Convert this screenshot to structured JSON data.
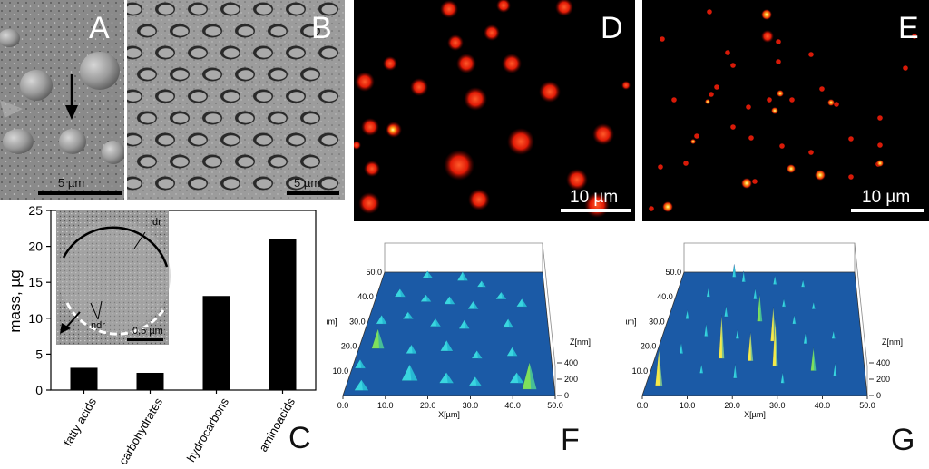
{
  "panels": {
    "A": {
      "letter": "A",
      "scale": "5 µm"
    },
    "B": {
      "letter": "B",
      "scale": "5 µm"
    },
    "C": {
      "letter": "C",
      "inset_scale": "0,5 µm",
      "inset_labels": {
        "dr": "dr",
        "ndr": "ndr"
      }
    },
    "D": {
      "letter": "D",
      "scale": "10 µm"
    },
    "E": {
      "letter": "E",
      "scale": "10 µm"
    },
    "F": {
      "letter": "F"
    },
    "G": {
      "letter": "G"
    }
  },
  "chart_data": [
    {
      "type": "bar",
      "categories": [
        "fatty acids",
        "carbohydrates",
        "hydrocarbons",
        "aminoacids"
      ],
      "values": [
        3.1,
        2.4,
        13.1,
        21.0
      ],
      "title": "",
      "xlabel": "",
      "ylabel": "mass, µg",
      "ylim": [
        0,
        25
      ],
      "yticks": [
        0,
        5,
        10,
        15,
        20,
        25
      ]
    }
  ],
  "surface_axes": {
    "x_label": "X[µm]",
    "y_label": "Y[µm]",
    "z_label": "Z[nm]",
    "x_ticks": [
      "0.0",
      "10.0",
      "20.0",
      "30.0",
      "40.0",
      "50.0"
    ],
    "y_ticks": [
      "10.0",
      "20.0",
      "30.0",
      "40.0",
      "50.0"
    ],
    "z_ticks": [
      "0",
      "200",
      "400"
    ]
  }
}
